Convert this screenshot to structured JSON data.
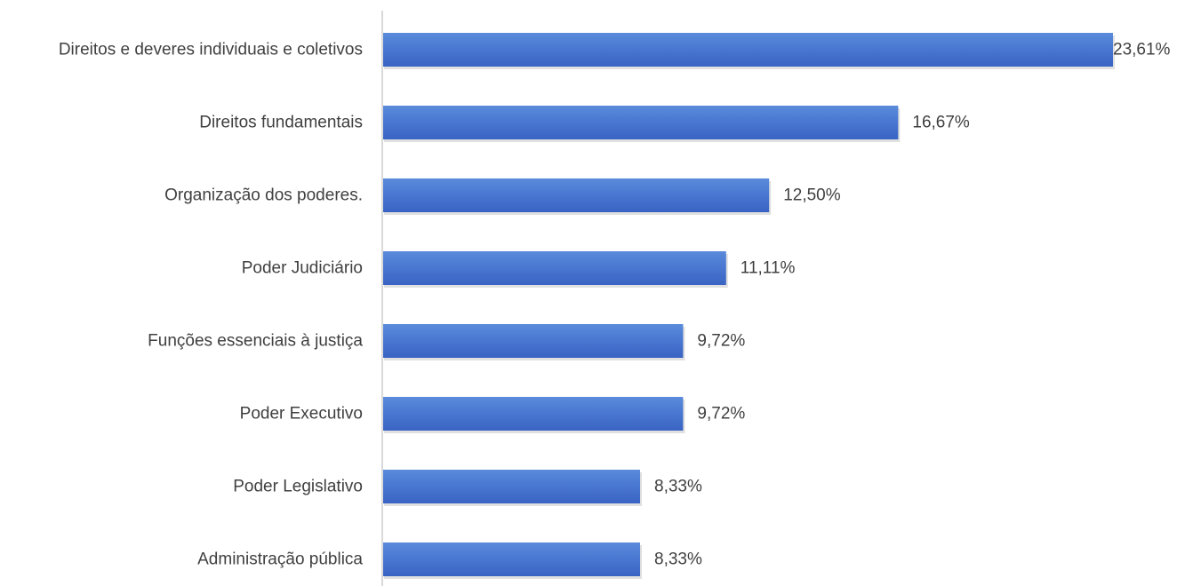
{
  "chart_data": {
    "type": "bar",
    "orientation": "horizontal",
    "title": "",
    "xlabel": "",
    "ylabel": "",
    "grid": false,
    "legend": "none",
    "xlim": [
      0,
      23.61
    ],
    "categories": [
      "Direitos e deveres individuais e coletivos",
      "Direitos fundamentais",
      "Organização dos poderes.",
      "Poder Judiciário",
      "Funções essenciais à justiça",
      "Poder Executivo",
      "Poder Legislativo",
      "Administração pública"
    ],
    "values": [
      23.61,
      16.67,
      12.5,
      11.11,
      9.72,
      9.72,
      8.33,
      8.33
    ],
    "value_labels": [
      "23,61%",
      "16,67%",
      "12,50%",
      "11,11%",
      "9,72%",
      "9,72%",
      "8,33%",
      "8,33%"
    ],
    "colors": {
      "bar_light": "#5B8BDB",
      "bar_dark": "#3A64C3",
      "text": "#404040",
      "axis": "#D9D9D9"
    }
  }
}
